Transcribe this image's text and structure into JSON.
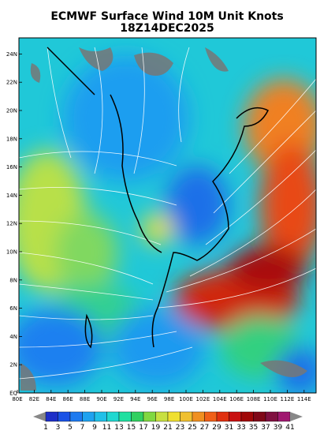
{
  "title": {
    "line1": "ECMWF Surface Wind 10M Unit Knots",
    "line2": "18Z14DEC2025"
  },
  "axes": {
    "y_labels": [
      "EQ",
      "2N",
      "4N",
      "6N",
      "8N",
      "10N",
      "12N",
      "14N",
      "16N",
      "18N",
      "20N",
      "22N",
      "24N"
    ],
    "x_labels": [
      "80E",
      "82E",
      "84E",
      "86E",
      "88E",
      "90E",
      "92E",
      "94E",
      "96E",
      "98E",
      "100E",
      "102E",
      "104E",
      "106E",
      "108E",
      "110E",
      "112E",
      "114E"
    ]
  },
  "colorbar": {
    "labels": [
      1,
      3,
      5,
      7,
      9,
      11,
      13,
      15,
      17,
      19,
      21,
      23,
      25,
      27,
      29,
      31,
      33,
      35,
      37,
      39,
      41
    ],
    "colors": [
      "#1e2fc8",
      "#1a52e6",
      "#1e7af0",
      "#1ea2f0",
      "#20c0e8",
      "#20d8d0",
      "#20e0a0",
      "#30d060",
      "#80d840",
      "#c8e040",
      "#f0e030",
      "#f0c030",
      "#f09020",
      "#f06018",
      "#e03010",
      "#c81010",
      "#a00808",
      "#800818",
      "#801040",
      "#a01870"
    ]
  }
}
